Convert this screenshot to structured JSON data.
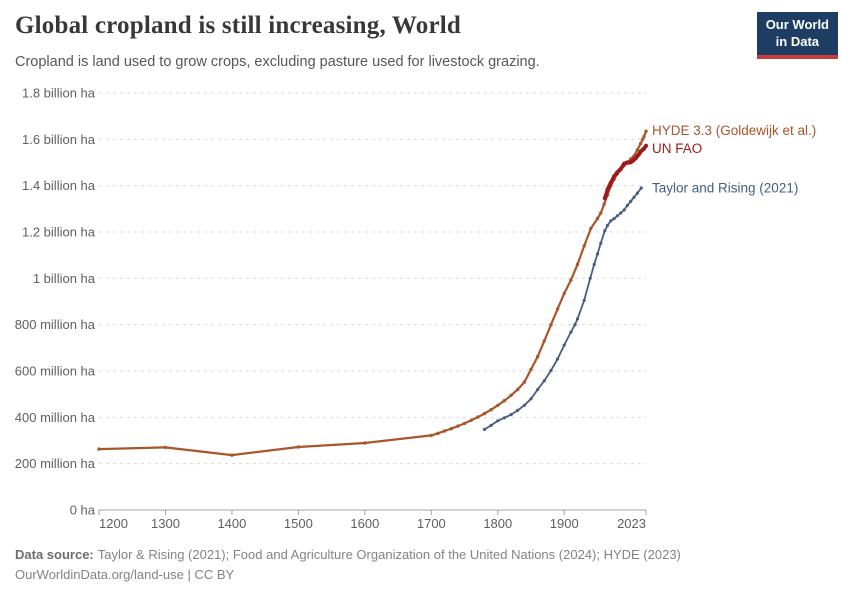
{
  "header": {
    "title": "Global cropland is still increasing, World",
    "subtitle": "Cropland is land used to grow crops, excluding pasture used for livestock grazing.",
    "logo": {
      "line1": "Our World",
      "line2": "in Data",
      "bg_color": "#1D3D63",
      "stripe_color": "#C93C3C"
    }
  },
  "chart_data": {
    "type": "line",
    "title": "Global cropland is still increasing, World",
    "xlabel": "",
    "ylabel": "",
    "unit": "million hectares",
    "xlim": [
      1200,
      2023
    ],
    "ylim": [
      0,
      1800
    ],
    "grid": "horizontal-dashed",
    "legend_position": "right-of-line-ends",
    "x_ticks": [
      1200,
      1300,
      1400,
      1500,
      1600,
      1700,
      1800,
      1900,
      2023
    ],
    "y_ticks": [
      {
        "value": 0,
        "label": "0 ha"
      },
      {
        "value": 200,
        "label": "200 million ha"
      },
      {
        "value": 400,
        "label": "400 million ha"
      },
      {
        "value": 600,
        "label": "600 million ha"
      },
      {
        "value": 800,
        "label": "800 million ha"
      },
      {
        "value": 1000,
        "label": "1 billion ha"
      },
      {
        "value": 1200,
        "label": "1.2 billion ha"
      },
      {
        "value": 1400,
        "label": "1.4 billion ha"
      },
      {
        "value": 1600,
        "label": "1.6 billion ha"
      },
      {
        "value": 1800,
        "label": "1.8 billion ha"
      }
    ],
    "series": [
      {
        "name": "HYDE 3.3 (Goldewijk et al.)",
        "slug": "hyde",
        "color": "#A9562B",
        "width": 2.2,
        "marker_r": 1.7,
        "label_dy": 4,
        "points": [
          [
            1200,
            263
          ],
          [
            1300,
            270
          ],
          [
            1400,
            237
          ],
          [
            1500,
            272
          ],
          [
            1600,
            289
          ],
          [
            1700,
            322
          ],
          [
            1710,
            331
          ],
          [
            1720,
            341
          ],
          [
            1730,
            351
          ],
          [
            1740,
            362
          ],
          [
            1750,
            374
          ],
          [
            1760,
            387
          ],
          [
            1770,
            401
          ],
          [
            1780,
            416
          ],
          [
            1790,
            433
          ],
          [
            1800,
            452
          ],
          [
            1810,
            472
          ],
          [
            1820,
            495
          ],
          [
            1830,
            520
          ],
          [
            1840,
            552
          ],
          [
            1850,
            607
          ],
          [
            1860,
            662
          ],
          [
            1870,
            730
          ],
          [
            1880,
            800
          ],
          [
            1890,
            868
          ],
          [
            1900,
            935
          ],
          [
            1910,
            992
          ],
          [
            1920,
            1060
          ],
          [
            1930,
            1140
          ],
          [
            1940,
            1215
          ],
          [
            1950,
            1258
          ],
          [
            1955,
            1282
          ],
          [
            1960,
            1320
          ],
          [
            1965,
            1360
          ],
          [
            1970,
            1400
          ],
          [
            1975,
            1428
          ],
          [
            1980,
            1452
          ],
          [
            1985,
            1470
          ],
          [
            1990,
            1488
          ],
          [
            1995,
            1500
          ],
          [
            2000,
            1515
          ],
          [
            2005,
            1528
          ],
          [
            2010,
            1555
          ],
          [
            2015,
            1582
          ],
          [
            2018,
            1600
          ],
          [
            2020,
            1612
          ],
          [
            2023,
            1635
          ]
        ]
      },
      {
        "name": "UN FAO",
        "slug": "un-fao",
        "color": "#9E1B1B",
        "width": 3.8,
        "marker_r": 2.1,
        "label_dy": 7,
        "points": [
          [
            1961,
            1346
          ],
          [
            1963,
            1360
          ],
          [
            1965,
            1383
          ],
          [
            1968,
            1400
          ],
          [
            1970,
            1413
          ],
          [
            1973,
            1428
          ],
          [
            1975,
            1440
          ],
          [
            1978,
            1450
          ],
          [
            1980,
            1458
          ],
          [
            1983,
            1466
          ],
          [
            1985,
            1472
          ],
          [
            1988,
            1484
          ],
          [
            1990,
            1495
          ],
          [
            1993,
            1498
          ],
          [
            1995,
            1500
          ],
          [
            1998,
            1500
          ],
          [
            2000,
            1501
          ],
          [
            2003,
            1507
          ],
          [
            2005,
            1512
          ],
          [
            2008,
            1520
          ],
          [
            2010,
            1528
          ],
          [
            2013,
            1538
          ],
          [
            2015,
            1548
          ],
          [
            2018,
            1555
          ],
          [
            2020,
            1560
          ],
          [
            2023,
            1572
          ]
        ]
      },
      {
        "name": "Taylor and Rising (2021)",
        "slug": "taylor-rising",
        "color": "#465D80",
        "width": 1.8,
        "marker_r": 1.6,
        "label_dy": 4.5,
        "points": [
          [
            1780,
            348
          ],
          [
            1790,
            365
          ],
          [
            1800,
            385
          ],
          [
            1810,
            398
          ],
          [
            1820,
            412
          ],
          [
            1830,
            430
          ],
          [
            1840,
            452
          ],
          [
            1850,
            480
          ],
          [
            1860,
            520
          ],
          [
            1870,
            558
          ],
          [
            1880,
            602
          ],
          [
            1890,
            652
          ],
          [
            1900,
            712
          ],
          [
            1910,
            768
          ],
          [
            1916,
            800
          ],
          [
            1920,
            825
          ],
          [
            1930,
            905
          ],
          [
            1939,
            1000
          ],
          [
            1945,
            1060
          ],
          [
            1950,
            1105
          ],
          [
            1955,
            1152
          ],
          [
            1961,
            1205
          ],
          [
            1965,
            1228
          ],
          [
            1970,
            1248
          ],
          [
            1975,
            1258
          ],
          [
            1980,
            1270
          ],
          [
            1985,
            1282
          ],
          [
            1990,
            1295
          ],
          [
            1995,
            1315
          ],
          [
            2000,
            1332
          ],
          [
            2005,
            1350
          ],
          [
            2010,
            1368
          ],
          [
            2016,
            1390
          ]
        ]
      }
    ]
  },
  "footer": {
    "source_label": "Data source:",
    "source_text": "Taylor & Rising (2021); Food and Agriculture Organization of the United Nations (2024); HYDE (2023)",
    "link": "OurWorldinData.org/land-use",
    "separator": " | ",
    "license": "CC BY"
  }
}
